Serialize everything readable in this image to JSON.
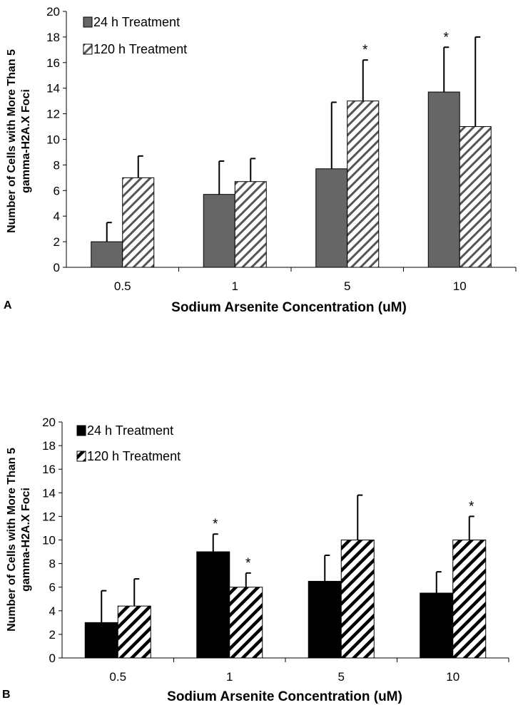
{
  "chart_data": [
    {
      "type": "bar",
      "panel_label": "A",
      "categories": [
        "0.5",
        "1",
        "5",
        "10"
      ],
      "series": [
        {
          "name": "24 h Treatment",
          "values": [
            2,
            5.7,
            7.7,
            13.7
          ],
          "errors": [
            1.5,
            2.6,
            5.2,
            3.5
          ],
          "color": "#666666",
          "pattern": "solid"
        },
        {
          "name": "120 h Treatment",
          "values": [
            7,
            6.7,
            13,
            11
          ],
          "errors": [
            1.7,
            1.8,
            3.2,
            7
          ],
          "color": "#ffffff",
          "pattern": "hatch-light"
        }
      ],
      "significance": [
        {
          "series": 1,
          "category": 2,
          "mark": "*"
        },
        {
          "series": 0,
          "category": 3,
          "mark": "*"
        }
      ],
      "yticks": [
        "0",
        "2",
        "4",
        "6",
        "8",
        "10",
        "12",
        "14",
        "16",
        "18",
        "20"
      ],
      "ylim": [
        0,
        20
      ],
      "ylabel_line1": "Number of Cells with More Than 5",
      "ylabel_line2": "gamma-H2A.X Foci",
      "xlabel": "Sodium Arsenite Concentration (uM)",
      "legend_position": "top-left"
    },
    {
      "type": "bar",
      "panel_label": "B",
      "categories": [
        "0.5",
        "1",
        "5",
        "10"
      ],
      "series": [
        {
          "name": "24 h Treatment",
          "values": [
            3,
            9,
            6.5,
            5.5
          ],
          "errors": [
            2.7,
            1.5,
            2.2,
            1.8
          ],
          "color": "#000000",
          "pattern": "solid"
        },
        {
          "name": "120 h Treatment",
          "values": [
            4.4,
            6,
            10,
            10
          ],
          "errors": [
            2.3,
            1.2,
            3.8,
            2
          ],
          "color": "#ffffff",
          "pattern": "hatch-bold"
        }
      ],
      "significance": [
        {
          "series": 0,
          "category": 1,
          "mark": "*"
        },
        {
          "series": 1,
          "category": 1,
          "mark": "*"
        },
        {
          "series": 1,
          "category": 3,
          "mark": "*"
        }
      ],
      "yticks": [
        "0",
        "2",
        "4",
        "6",
        "8",
        "10",
        "12",
        "14",
        "16",
        "18",
        "20"
      ],
      "ylim": [
        0,
        20
      ],
      "ylabel_line1": "Number of Cells with More Than 5",
      "ylabel_line2": "gamma-H2A.X Foci",
      "xlabel": "Sodium Arsenite Concentration (uM)",
      "legend_position": "top-left"
    }
  ]
}
